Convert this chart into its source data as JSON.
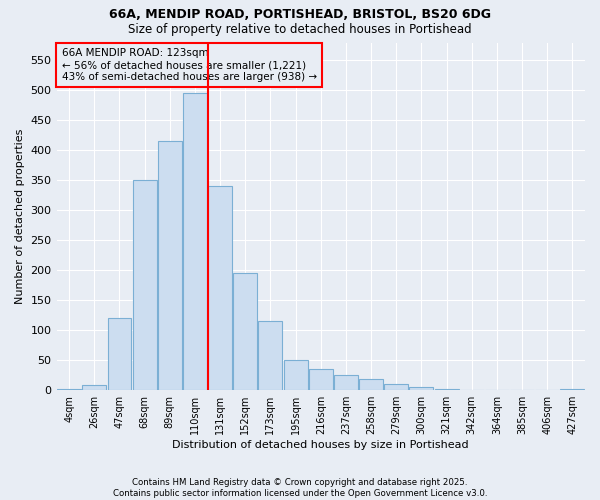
{
  "title1": "66A, MENDIP ROAD, PORTISHEAD, BRISTOL, BS20 6DG",
  "title2": "Size of property relative to detached houses in Portishead",
  "xlabel": "Distribution of detached houses by size in Portishead",
  "ylabel": "Number of detached properties",
  "footnote1": "Contains HM Land Registry data © Crown copyright and database right 2025.",
  "footnote2": "Contains public sector information licensed under the Open Government Licence v3.0.",
  "annotation_line1": "66A MENDIP ROAD: 123sqm",
  "annotation_line2": "← 56% of detached houses are smaller (1,221)",
  "annotation_line3": "43% of semi-detached houses are larger (938) →",
  "bar_labels": [
    "4sqm",
    "26sqm",
    "47sqm",
    "68sqm",
    "89sqm",
    "110sqm",
    "131sqm",
    "152sqm",
    "173sqm",
    "195sqm",
    "216sqm",
    "237sqm",
    "258sqm",
    "279sqm",
    "300sqm",
    "321sqm",
    "342sqm",
    "364sqm",
    "385sqm",
    "406sqm",
    "427sqm"
  ],
  "bar_values": [
    2,
    8,
    120,
    350,
    415,
    495,
    340,
    195,
    115,
    50,
    35,
    25,
    18,
    10,
    5,
    2,
    1,
    1,
    1,
    1,
    2
  ],
  "bar_color": "#ccddf0",
  "bar_edge_color": "#7bafd4",
  "bg_color": "#e8edf4",
  "grid_color": "#ffffff",
  "red_line_x": 5.5,
  "ylim": [
    0,
    580
  ],
  "yticks": [
    0,
    50,
    100,
    150,
    200,
    250,
    300,
    350,
    400,
    450,
    500,
    550
  ],
  "figsize": [
    6.0,
    5.0
  ],
  "dpi": 100
}
